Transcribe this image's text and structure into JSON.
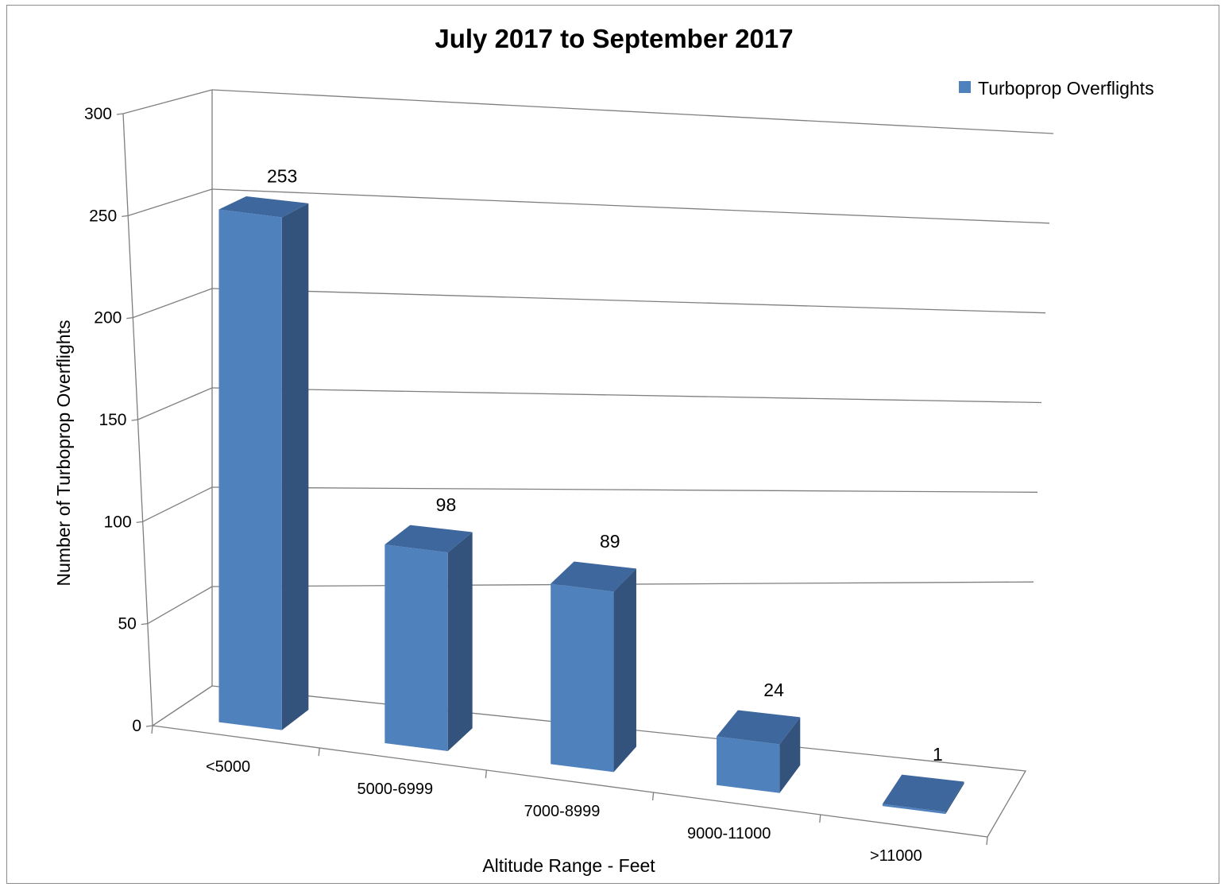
{
  "chart_data": {
    "type": "bar",
    "title": "July 2017 to September 2017",
    "xlabel": "Altitude Range  - Feet",
    "ylabel": "Number of Turboprop Overflights",
    "categories": [
      "<5000",
      "5000-6999",
      "7000-8999",
      "9000-11000",
      ">11000"
    ],
    "series": [
      {
        "name": "Turboprop Overflights",
        "values": [
          253,
          98,
          89,
          24,
          1
        ],
        "color": "#4f81bd"
      }
    ],
    "ylim": [
      0,
      300
    ],
    "yticks": [
      0,
      50,
      100,
      150,
      200,
      250,
      300
    ],
    "data_labels": [
      "253",
      "98",
      "89",
      "24",
      "1"
    ],
    "grid": true,
    "three_d": true,
    "legend_position": "top-right",
    "colors": {
      "bar_front": "#4f81bd",
      "bar_side": "#33537d",
      "bar_top": "#3e679e",
      "gridline": "#7f7f7f",
      "frame": "#8c8c8c"
    }
  }
}
